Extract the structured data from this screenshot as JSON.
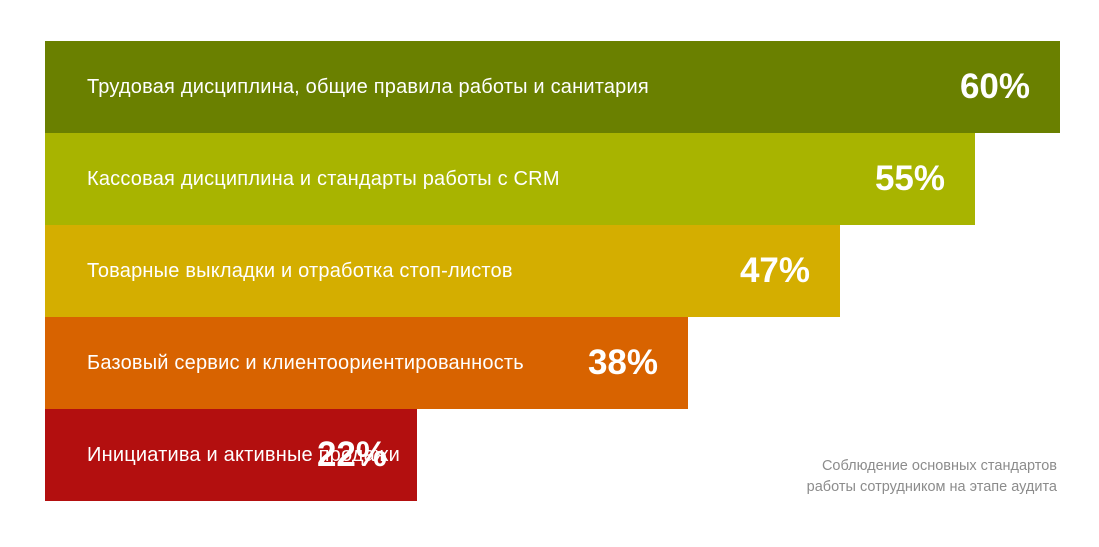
{
  "chart_data": {
    "type": "bar",
    "orientation": "horizontal",
    "categories": [
      "Трудовая дисциплина, общие правила работы и санитария",
      "Кассовая дисциплина и стандарты работы с CRM",
      "Товарные выкладки и отработка стоп-листов",
      "Базовый сервис и клиентоориентированность",
      "Инициатива и активные продажи"
    ],
    "values": [
      60,
      55,
      47,
      38,
      22
    ],
    "value_labels": [
      "60%",
      "55%",
      "47%",
      "38%",
      "22%"
    ],
    "unit": "%",
    "colors": [
      "#6a8000",
      "#a8b400",
      "#d4ae00",
      "#d86300",
      "#b30f0f"
    ],
    "caption": [
      "Соблюдение основных стандартов",
      "работы сотрудником на этапе аудита"
    ]
  }
}
